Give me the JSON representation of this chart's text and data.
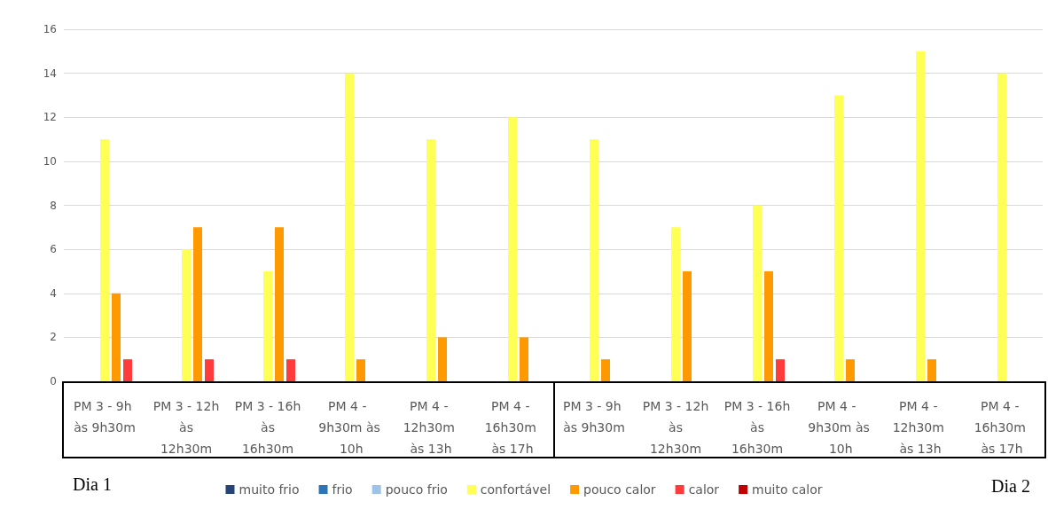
{
  "chart_data": {
    "type": "bar",
    "categories": [
      "PM 3 - 9h às 9h30m",
      "PM 3 - 12h às 12h30m",
      "PM 3 - 16h às 16h30m",
      "PM 4 - 9h30m às 10h",
      "PM 4 - 12h30m às 13h",
      "PM 4 - 16h30m às 17h",
      "PM 3 - 9h às 9h30m",
      "PM 3 - 12h às 12h30m",
      "PM 3 - 16h às 16h30m",
      "PM 4 - 9h30m às 10h",
      "PM 4 - 12h30m às 13h",
      "PM 4 - 16h30m às 17h"
    ],
    "series": [
      {
        "name": "muito frio",
        "color": "#264478",
        "values": [
          0,
          0,
          0,
          0,
          0,
          0,
          0,
          0,
          0,
          0,
          0,
          0
        ]
      },
      {
        "name": "frio",
        "color": "#2e75b6",
        "values": [
          0,
          0,
          0,
          0,
          0,
          0,
          0,
          0,
          0,
          0,
          0,
          0
        ]
      },
      {
        "name": "pouco frio",
        "color": "#9dc3e6",
        "values": [
          0,
          0,
          0,
          0,
          0,
          0,
          0,
          0,
          0,
          0,
          0,
          0
        ]
      },
      {
        "name": "confortável",
        "color": "#ffff55",
        "values": [
          11,
          6,
          5,
          14,
          11,
          12,
          11,
          7,
          8,
          13,
          15,
          14
        ]
      },
      {
        "name": "pouco calor",
        "color": "#ff9900",
        "values": [
          4,
          7,
          7,
          1,
          2,
          2,
          1,
          5,
          5,
          1,
          1,
          0
        ]
      },
      {
        "name": "calor",
        "color": "#ff3b3b",
        "values": [
          1,
          1,
          1,
          0,
          0,
          0,
          0,
          0,
          1,
          0,
          0,
          0
        ]
      },
      {
        "name": "muito calor",
        "color": "#c00000",
        "values": [
          0,
          0,
          0,
          0,
          0,
          0,
          0,
          0,
          0,
          0,
          0,
          0
        ]
      }
    ],
    "ylim": [
      0,
      16
    ],
    "yticks": [
      0,
      2,
      4,
      6,
      8,
      10,
      12,
      14,
      16
    ],
    "annotations": [
      "Dia 1",
      "Dia 2"
    ],
    "grid": "y",
    "legend": "bottom"
  }
}
